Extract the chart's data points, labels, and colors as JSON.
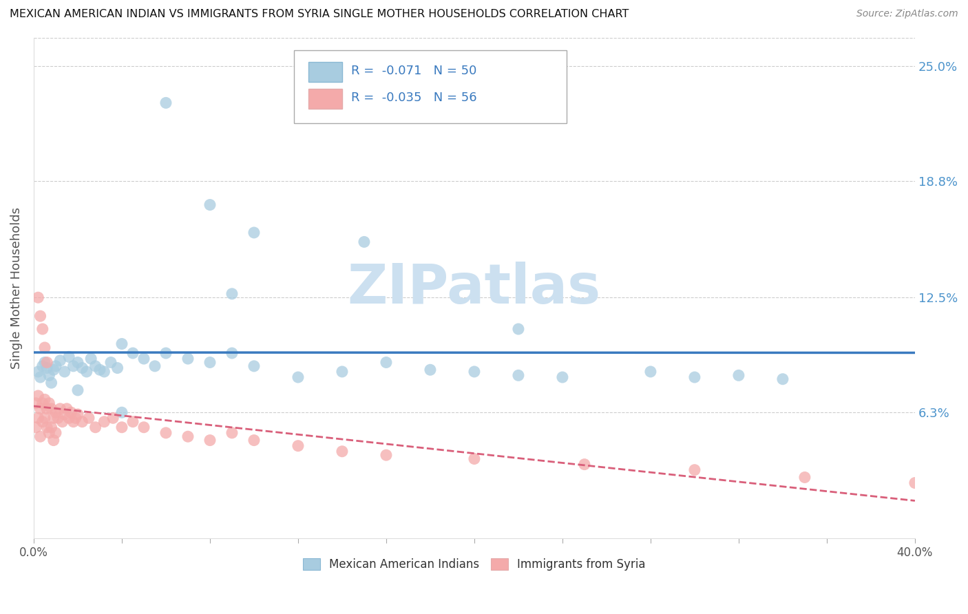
{
  "title": "MEXICAN AMERICAN INDIAN VS IMMIGRANTS FROM SYRIA SINGLE MOTHER HOUSEHOLDS CORRELATION CHART",
  "source": "Source: ZipAtlas.com",
  "ylabel": "Single Mother Households",
  "xlim": [
    0.0,
    0.4
  ],
  "ylim": [
    -0.005,
    0.265
  ],
  "yticks": [
    0.063,
    0.125,
    0.188,
    0.25
  ],
  "ytick_labels": [
    "6.3%",
    "12.5%",
    "18.8%",
    "25.0%"
  ],
  "xtick_positions": [
    0.0,
    0.04,
    0.08,
    0.12,
    0.16,
    0.2,
    0.24,
    0.28,
    0.32,
    0.36,
    0.4
  ],
  "xtick_labels_sparse": {
    "0": "0.0%",
    "10": "40.0%"
  },
  "blue_R": -0.071,
  "blue_N": 50,
  "pink_R": -0.035,
  "pink_N": 56,
  "blue_label": "Mexican American Indians",
  "pink_label": "Immigrants from Syria",
  "blue_color": "#a8cce0",
  "pink_color": "#f4aaaa",
  "blue_line_color": "#3a7abf",
  "pink_line_color": "#d95f7a",
  "watermark_color": "#cce0f0",
  "background_color": "#ffffff",
  "blue_x": [
    0.002,
    0.003,
    0.004,
    0.005,
    0.006,
    0.007,
    0.008,
    0.009,
    0.01,
    0.012,
    0.014,
    0.016,
    0.018,
    0.02,
    0.022,
    0.024,
    0.026,
    0.028,
    0.03,
    0.032,
    0.035,
    0.038,
    0.04,
    0.045,
    0.05,
    0.055,
    0.06,
    0.07,
    0.08,
    0.09,
    0.1,
    0.12,
    0.14,
    0.16,
    0.18,
    0.2,
    0.22,
    0.24,
    0.28,
    0.3,
    0.32,
    0.34,
    0.09,
    0.15,
    0.22,
    0.1,
    0.08,
    0.06,
    0.04,
    0.02
  ],
  "blue_y": [
    0.085,
    0.082,
    0.088,
    0.09,
    0.087,
    0.083,
    0.079,
    0.086,
    0.088,
    0.091,
    0.085,
    0.093,
    0.088,
    0.09,
    0.087,
    0.085,
    0.092,
    0.088,
    0.086,
    0.085,
    0.09,
    0.087,
    0.1,
    0.095,
    0.092,
    0.088,
    0.095,
    0.092,
    0.09,
    0.095,
    0.088,
    0.082,
    0.085,
    0.09,
    0.086,
    0.085,
    0.083,
    0.082,
    0.085,
    0.082,
    0.083,
    0.081,
    0.127,
    0.155,
    0.108,
    0.16,
    0.175,
    0.23,
    0.063,
    0.075
  ],
  "pink_x": [
    0.001,
    0.001,
    0.002,
    0.002,
    0.003,
    0.003,
    0.004,
    0.004,
    0.005,
    0.005,
    0.006,
    0.006,
    0.007,
    0.007,
    0.008,
    0.008,
    0.009,
    0.009,
    0.01,
    0.01,
    0.011,
    0.012,
    0.013,
    0.014,
    0.015,
    0.016,
    0.017,
    0.018,
    0.019,
    0.02,
    0.022,
    0.025,
    0.028,
    0.032,
    0.036,
    0.04,
    0.045,
    0.05,
    0.06,
    0.07,
    0.08,
    0.09,
    0.1,
    0.12,
    0.14,
    0.16,
    0.2,
    0.25,
    0.3,
    0.35,
    0.4,
    0.002,
    0.003,
    0.004,
    0.005,
    0.006
  ],
  "pink_y": [
    0.068,
    0.055,
    0.072,
    0.06,
    0.065,
    0.05,
    0.068,
    0.058,
    0.07,
    0.06,
    0.065,
    0.055,
    0.068,
    0.052,
    0.065,
    0.055,
    0.06,
    0.048,
    0.063,
    0.052,
    0.06,
    0.065,
    0.058,
    0.062,
    0.065,
    0.06,
    0.063,
    0.058,
    0.06,
    0.062,
    0.058,
    0.06,
    0.055,
    0.058,
    0.06,
    0.055,
    0.058,
    0.055,
    0.052,
    0.05,
    0.048,
    0.052,
    0.048,
    0.045,
    0.042,
    0.04,
    0.038,
    0.035,
    0.032,
    0.028,
    0.025,
    0.125,
    0.115,
    0.108,
    0.098,
    0.09
  ]
}
